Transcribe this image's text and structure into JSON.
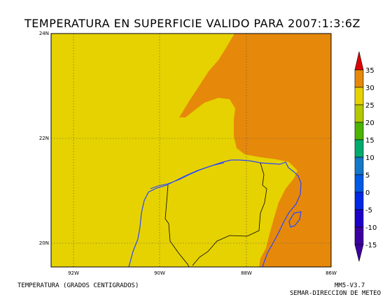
{
  "title": "TEMPERATURA EN SUPERFICIE VALIDO PARA 2007:1:3:6Z",
  "axes": {
    "lat_labels": [
      "24N",
      "22N",
      "20N"
    ],
    "lon_labels": [
      "92W",
      "90W",
      "88W",
      "86W"
    ]
  },
  "colorbar": {
    "ticks": [
      "35",
      "30",
      "25",
      "20",
      "15",
      "10",
      "5",
      "0",
      "-5",
      "-10",
      "-15"
    ],
    "colors": [
      "#e00000",
      "#e6880a",
      "#e6d200",
      "#b4c800",
      "#4cb400",
      "#00aa6e",
      "#1478c8",
      "#005ae6",
      "#0028e6",
      "#1e00c8",
      "#3c00a0"
    ]
  },
  "map_colors": {
    "yellow_band": "#e6d200",
    "orange_band": "#e6880a",
    "coastline": "#2846ff",
    "border": "#000000"
  },
  "footer": {
    "left": "TEMPERATURA (GRADOS CENTIGRADOS)",
    "model": "MM5-V3.7",
    "agency": "SEMAR-DIRECCION DE METEO"
  }
}
